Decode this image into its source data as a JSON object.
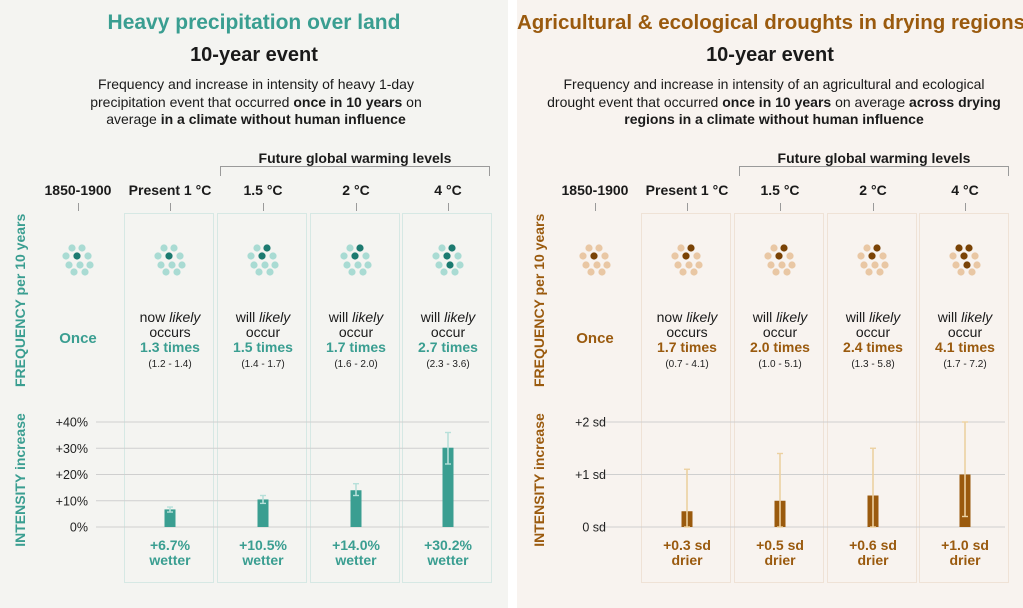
{
  "colors": {
    "teal": "#3a9e91",
    "teal_dark": "#1d7a70",
    "teal_light": "#a9dbd3",
    "brown": "#9a5a0e",
    "brown_dark": "#7a4306",
    "brown_light": "#e9c7a4",
    "whisker_right": "#ecd1a1"
  },
  "left": {
    "title": "Heavy precipitation over land",
    "subtitle": "10-year event",
    "description_parts": [
      "Frequency and increase in intensity of heavy 1-day precipitation event that occurred ",
      "once in 10 years",
      " on average ",
      "in a climate without human influence"
    ],
    "future_label": "Future global warming levels",
    "freq_axis_label": "FREQUENCY per 10 years",
    "int_axis_label": "INTENSITY increase",
    "columns": [
      {
        "header": "1850-1900",
        "once": "Once",
        "intensity": ""
      },
      {
        "header": "Present 1 °C",
        "line1": "now likely",
        "line2": "occurs",
        "times": "1.3 times",
        "range": "(1.2 - 1.4)",
        "intensity1": "+6.7%",
        "intensity2": "wetter"
      },
      {
        "header": "1.5 °C",
        "line1": "will likely",
        "line2": "occur",
        "times": "1.5 times",
        "range": "(1.4 - 1.7)",
        "intensity1": "+10.5%",
        "intensity2": "wetter"
      },
      {
        "header": "2 °C",
        "line1": "will likely",
        "line2": "occur",
        "times": "1.7 times",
        "range": "(1.6 - 2.0)",
        "intensity1": "+14.0%",
        "intensity2": "wetter"
      },
      {
        "header": "4 °C",
        "line1": "will likely",
        "line2": "occur",
        "times": "2.7 times",
        "range": "(2.3 - 3.6)",
        "intensity1": "+30.2%",
        "intensity2": "wetter"
      }
    ],
    "dots_highlight": [
      1,
      1,
      2,
      2,
      3
    ]
  },
  "right": {
    "title": "Agricultural & ecological droughts in drying regions",
    "subtitle": "10-year event",
    "description_parts": [
      "Frequency and increase in intensity of an agricultural and ecological drought event that occurred ",
      "once in 10 years",
      " on average ",
      "across drying regions in a climate without human influence"
    ],
    "future_label": "Future global warming levels",
    "freq_axis_label": "FREQUENCY per 10 years",
    "int_axis_label": "INTENSITY increase",
    "columns": [
      {
        "header": "1850-1900",
        "once": "Once",
        "intensity": ""
      },
      {
        "header": "Present 1 °C",
        "line1": "now likely",
        "line2": "occurs",
        "times": "1.7 times",
        "range": "(0.7 - 4.1)",
        "intensity1": "+0.3 sd",
        "intensity2": "drier"
      },
      {
        "header": "1.5 °C",
        "line1": "will likely",
        "line2": "occur",
        "times": "2.0 times",
        "range": "(1.0 - 5.1)",
        "intensity1": "+0.5 sd",
        "intensity2": "drier"
      },
      {
        "header": "2 °C",
        "line1": "will likely",
        "line2": "occur",
        "times": "2.4 times",
        "range": "(1.3 - 5.8)",
        "intensity1": "+0.6 sd",
        "intensity2": "drier"
      },
      {
        "header": "4 °C",
        "line1": "will likely",
        "line2": "occur",
        "times": "4.1 times",
        "range": "(1.7 - 7.2)",
        "intensity1": "+1.0 sd",
        "intensity2": "drier"
      }
    ],
    "dots_highlight": [
      1,
      2,
      2,
      2,
      4
    ]
  },
  "chart_data": [
    {
      "type": "bar",
      "title": "Heavy precipitation over land",
      "ylabel": "INTENSITY increase",
      "categories": [
        "1850-1900",
        "Present 1 °C",
        "1.5 °C",
        "2 °C",
        "4 °C"
      ],
      "values": [
        null,
        6.7,
        10.5,
        14.0,
        30.2
      ],
      "error_low": [
        null,
        5.7,
        9.0,
        12.0,
        24.0
      ],
      "error_high": [
        null,
        7.6,
        12.0,
        16.5,
        36.0
      ],
      "ylim": [
        0,
        40
      ],
      "yticks": [
        0,
        10,
        20,
        30,
        40
      ],
      "ytick_labels": [
        "0%",
        "+10%",
        "+20%",
        "+30%",
        "+40%"
      ],
      "grid": true
    },
    {
      "type": "bar",
      "title": "Agricultural & ecological droughts in drying regions",
      "ylabel": "INTENSITY increase",
      "categories": [
        "1850-1900",
        "Present 1 °C",
        "1.5 °C",
        "2 °C",
        "4 °C"
      ],
      "values": [
        null,
        0.3,
        0.5,
        0.6,
        1.0
      ],
      "error_low": [
        null,
        0.0,
        0.0,
        0.0,
        0.2
      ],
      "error_high": [
        null,
        1.1,
        1.4,
        1.5,
        2.0
      ],
      "ylim": [
        0,
        2
      ],
      "yticks": [
        0,
        1,
        2
      ],
      "ytick_labels": [
        "0 sd",
        "+1 sd",
        "+2 sd"
      ],
      "grid": true
    }
  ]
}
